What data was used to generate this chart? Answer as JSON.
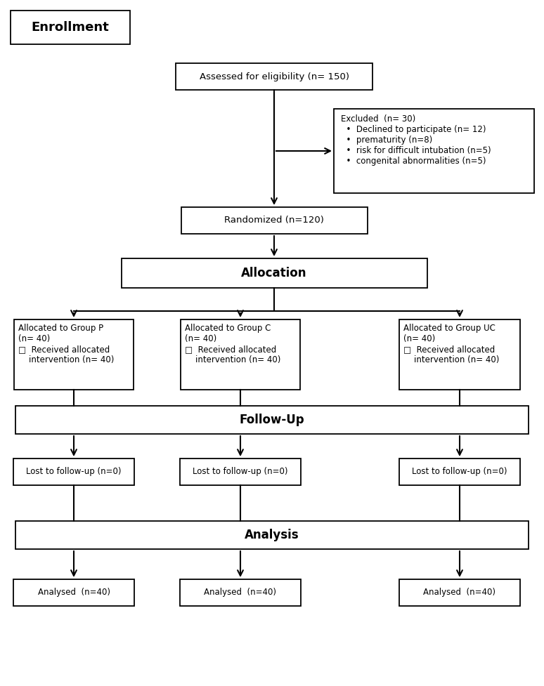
{
  "background_color": "#ffffff",
  "enrollment_label": "Enrollment",
  "eligibility_box": "Assessed for eligibility (n= 150)",
  "excluded_box": "Excluded  (n= 30)\n•  Declined to participate (n= 12)\n•  prematurity (n=8)\n•  risk for difficult intubation (n=5)\n•  congenital abnormalities (n=5)",
  "randomized_box": "Randomized (n=120)",
  "allocation_box": "Allocation",
  "group_p_box": "Allocated to Group P\n(n= 40)\n□  Received allocated\n    intervention (n= 40)",
  "group_c_box": "Allocated to Group C\n(n= 40)\n□  Received allocated\n    intervention (n= 40)",
  "group_uc_box": "Allocated to Group UC\n(n= 40)\n□  Received allocated\n    intervention (n= 40)",
  "followup_box": "Follow-Up",
  "lost_p_box": "Lost to follow-up (n=0)",
  "lost_c_box": "Lost to follow-up (n=0)",
  "lost_uc_box": "Lost to follow-up (n=0)",
  "analysis_box": "Analysis",
  "analysed_p_box": "Analysed  (n=40)",
  "analysed_c_box": "Analysed  (n=40)",
  "analysed_uc_box": "Analysed  (n=40)"
}
